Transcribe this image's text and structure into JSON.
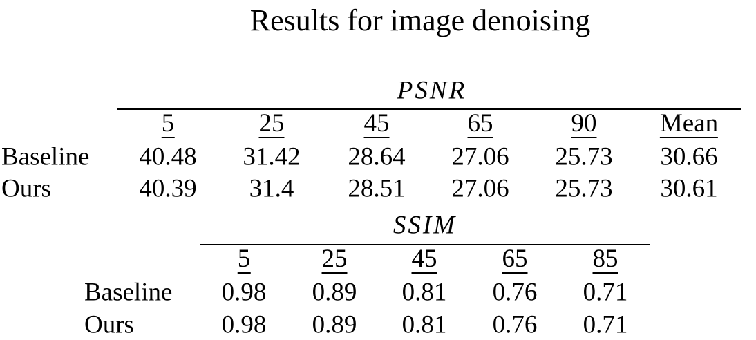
{
  "title": "Results for image denoising",
  "psnr": {
    "metric": "PSNR",
    "columns": [
      5,
      25,
      45,
      65,
      90,
      "Mean"
    ],
    "rows": [
      {
        "label": "Baseline",
        "values": [
          40.48,
          31.42,
          28.64,
          27.06,
          25.73,
          30.66
        ]
      },
      {
        "label": "Ours",
        "values": [
          40.39,
          31.4,
          28.51,
          27.06,
          25.73,
          30.61
        ]
      }
    ]
  },
  "ssim": {
    "metric": "SSIM",
    "columns": [
      5,
      25,
      45,
      65,
      85
    ],
    "rows": [
      {
        "label": "Baseline",
        "values": [
          0.98,
          0.89,
          0.81,
          0.76,
          0.71
        ]
      },
      {
        "label": "Ours",
        "values": [
          0.98,
          0.89,
          0.81,
          0.76,
          0.71
        ]
      }
    ]
  }
}
